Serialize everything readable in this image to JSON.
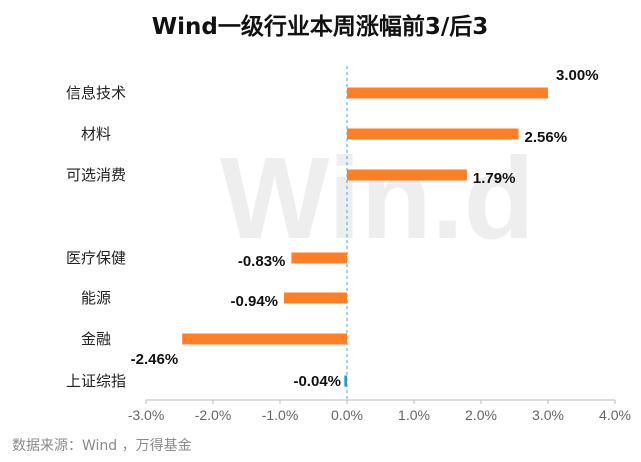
{
  "watermark_text": "Win.d",
  "source_note": "数据来源：Wind ，万得基金",
  "colors": {
    "positive": "#ff7f27",
    "negative": "#ff7f27",
    "index": "#1f9ad6",
    "axis": "#bbbbbb",
    "zero_line": "#4aa3d8"
  },
  "chart_data": {
    "type": "bar",
    "orientation": "horizontal",
    "title": "Wind一级行业本周涨幅前3/后3",
    "categories": [
      "信息技术",
      "材料",
      "可选消费",
      "医疗保健",
      "能源",
      "金融",
      "上证综指"
    ],
    "values": [
      3.0,
      2.56,
      1.79,
      -0.83,
      -0.94,
      -2.46,
      -0.04
    ],
    "value_labels": [
      "3.00%",
      "2.56%",
      "1.79%",
      "-0.83%",
      "-0.94%",
      "-2.46%",
      "-0.04%"
    ],
    "xlim": [
      -3.0,
      4.0
    ],
    "xticks": [
      -3.0,
      -2.0,
      -1.0,
      0.0,
      1.0,
      2.0,
      3.0,
      4.0
    ],
    "xtick_labels": [
      "-3.0%",
      "-2.0%",
      "-1.0%",
      "0.0%",
      "1.0%",
      "2.0%",
      "3.0%",
      "4.0%"
    ],
    "xlabel": "",
    "ylabel": "",
    "grid": false,
    "legend": "none"
  }
}
